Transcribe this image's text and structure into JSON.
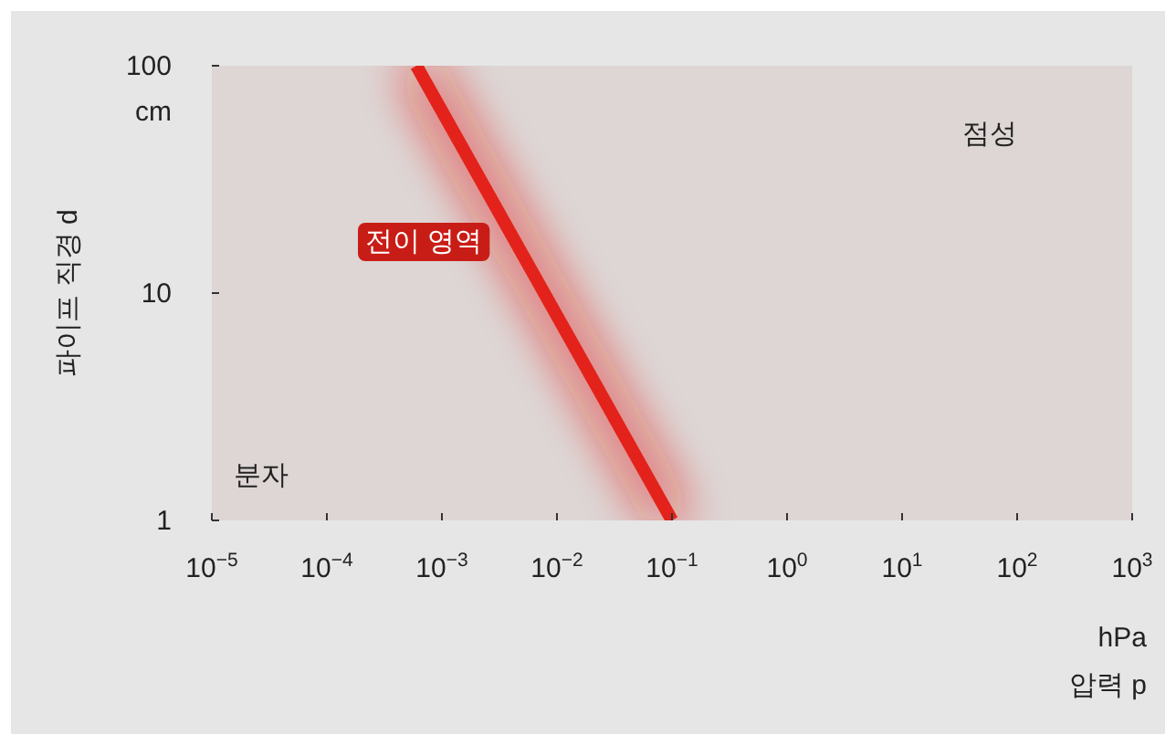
{
  "chart_data": {
    "type": "line",
    "xlabel": "압력 p",
    "ylabel": "파이프 직경 d",
    "log": "xy",
    "x": [
      0.0006,
      0.1
    ],
    "series": [
      {
        "color": "#e3241c",
        "values": [
          100,
          1
        ]
      }
    ],
    "xlim": [
      1e-05,
      1000
    ],
    "ylim": [
      1,
      100
    ],
    "xticks": [
      {
        "value": 1e-05,
        "label": "10$^{−5}$"
      },
      {
        "value": 0.0001,
        "label": "10$^{−4}$"
      },
      {
        "value": 0.001,
        "label": "10$^{−3}$"
      },
      {
        "value": 0.01,
        "label": "10$^{−2}$"
      },
      {
        "value": 0.1,
        "label": "10$^{−1}$"
      },
      {
        "value": 1,
        "label": "10$^{0}$"
      },
      {
        "value": 10,
        "label": "10$^{1}$"
      },
      {
        "value": 100,
        "label": "10$^{2}$"
      },
      {
        "value": 1000,
        "label": "10$^{3}$"
      }
    ],
    "yticks": [
      1,
      10,
      100
    ],
    "annotations": [
      "분자",
      "전이 영역",
      "점성",
      "cm",
      "hPa"
    ]
  }
}
